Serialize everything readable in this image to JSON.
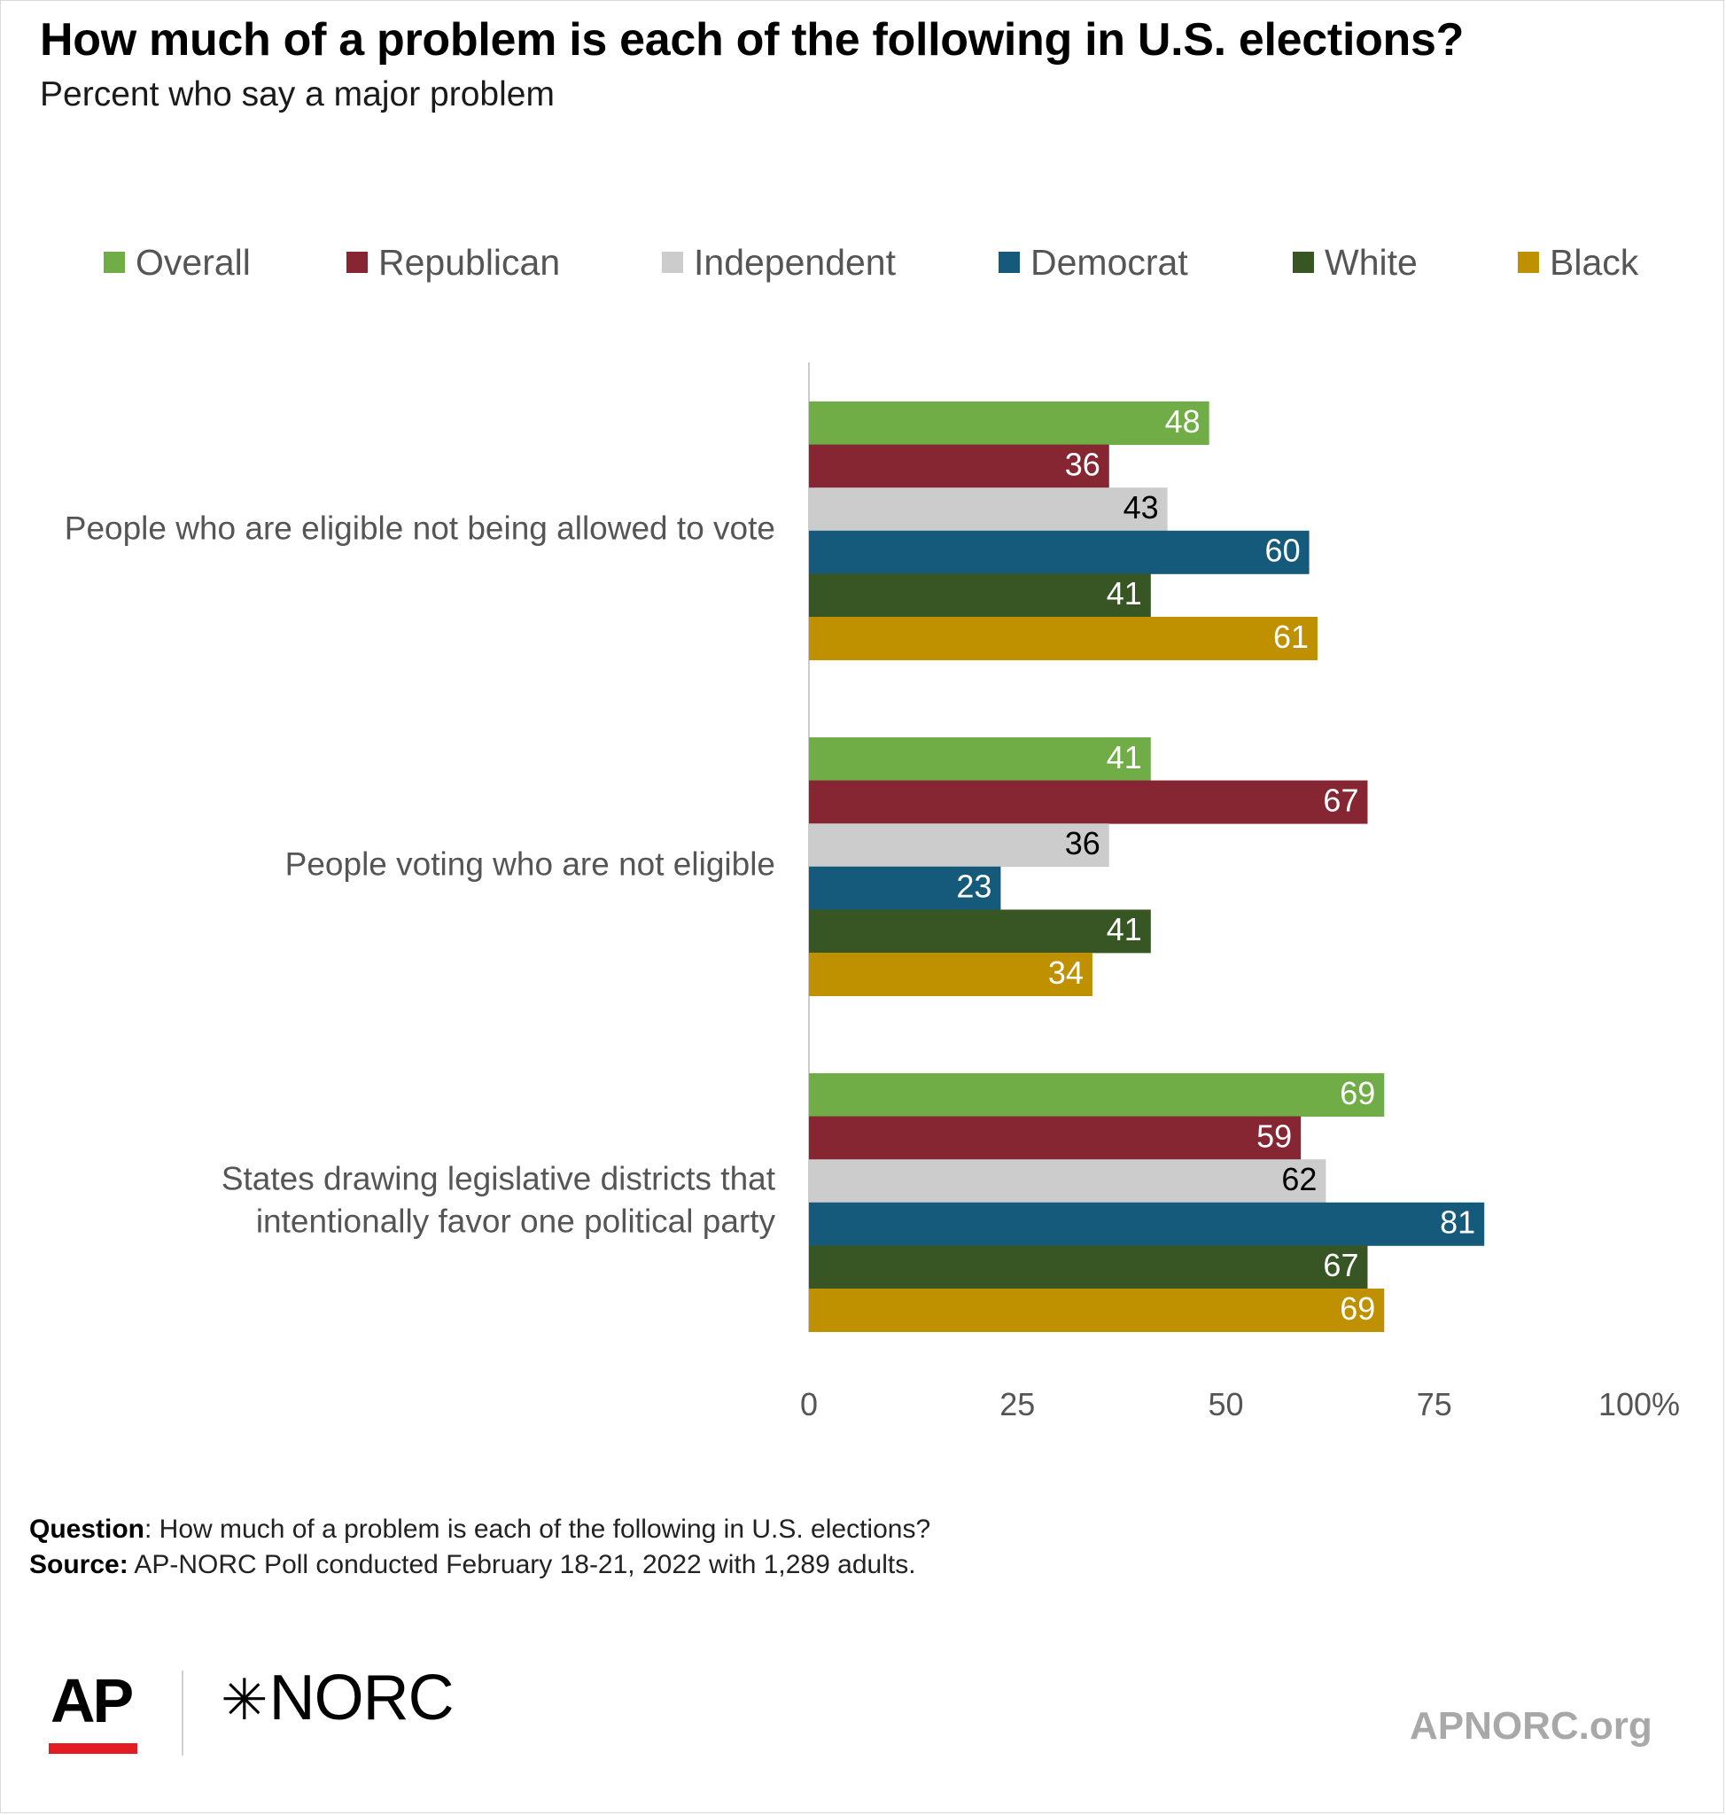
{
  "chart_data": {
    "type": "bar",
    "orientation": "horizontal",
    "title": "How much of a problem is each of the following in U.S. elections?",
    "subtitle": "Percent who say a major problem",
    "categories": [
      [
        "People who are eligible not being allowed to vote"
      ],
      [
        "People voting who are not eligible"
      ],
      [
        "States drawing legislative districts that",
        "intentionally favor one political party"
      ]
    ],
    "series": [
      {
        "name": "Overall",
        "color": "#70ad47",
        "label_color": "#ffffff",
        "values": [
          48,
          41,
          69
        ]
      },
      {
        "name": "Republican",
        "color": "#862633",
        "label_color": "#ffffff",
        "values": [
          36,
          67,
          59
        ]
      },
      {
        "name": "Independent",
        "color": "#cccccc",
        "label_color": "#000000",
        "values": [
          43,
          36,
          62
        ]
      },
      {
        "name": "Democrat",
        "color": "#155a7a",
        "label_color": "#ffffff",
        "values": [
          60,
          23,
          81
        ]
      },
      {
        "name": "White",
        "color": "#375623",
        "label_color": "#ffffff",
        "values": [
          41,
          41,
          67
        ]
      },
      {
        "name": "Black",
        "color": "#bf9000",
        "label_color": "#ffffff",
        "values": [
          61,
          34,
          69
        ]
      }
    ],
    "ticks": [
      0,
      25,
      50,
      75,
      100
    ],
    "tick_labels": [
      "0",
      "25",
      "50",
      "75",
      "100%"
    ],
    "xlim": [
      0,
      100
    ],
    "legend_position": "top",
    "grid": false
  },
  "footnote": {
    "question_label": "Question",
    "question_text": ": How much of a problem is each of the following in U.S. elections?",
    "source_label": "Source:",
    "source_text": " AP-NORC Poll conducted February 18-21, 2022 with 1,289 adults."
  },
  "branding": {
    "ap_logo": "AP",
    "norc_logo": "NORC",
    "norc_star_icon": "star-burst-icon",
    "ap_accent_color": "#e31b23",
    "site": "APNORC.org"
  }
}
